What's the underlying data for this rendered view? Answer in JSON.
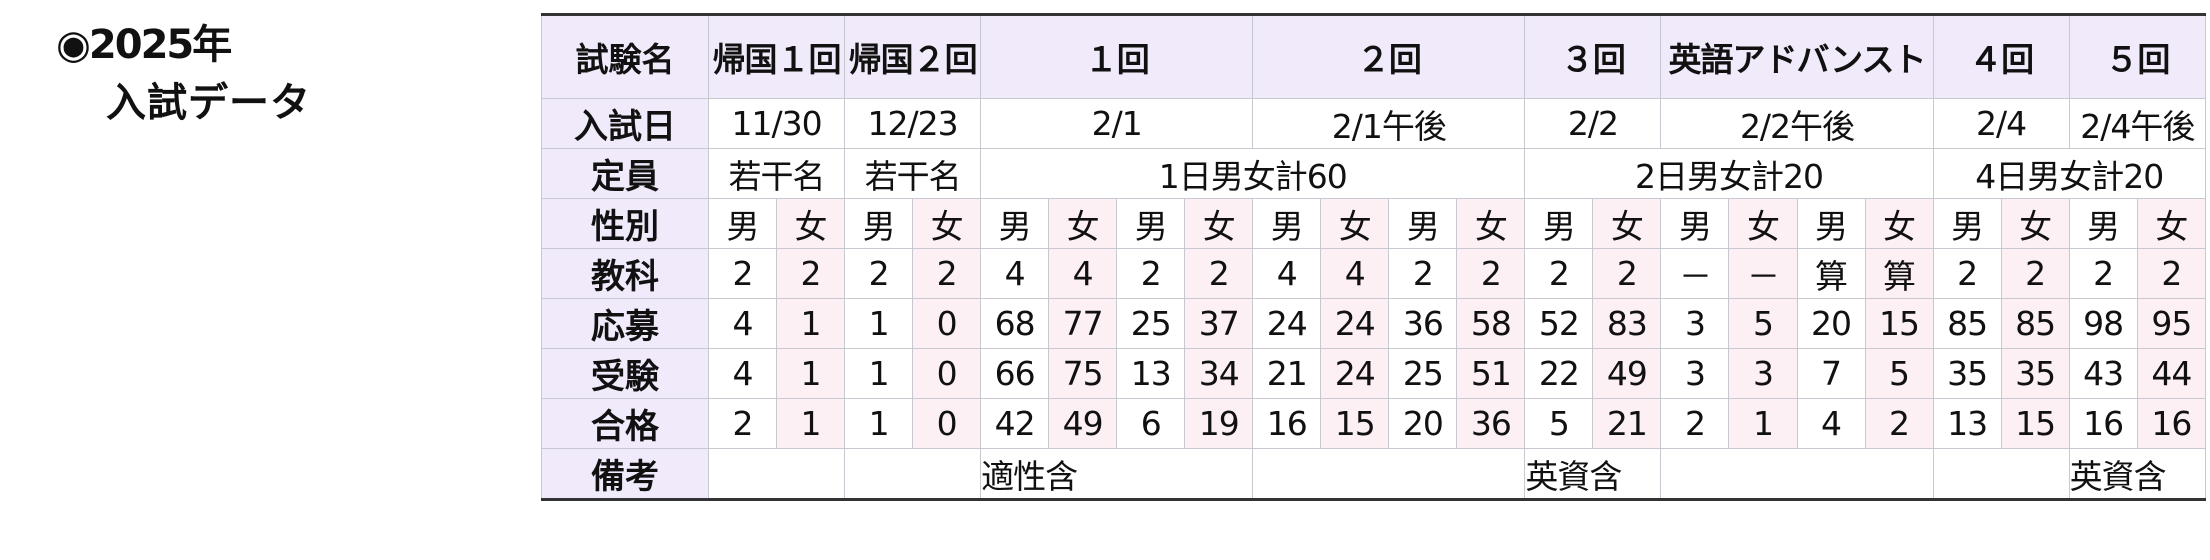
{
  "title": {
    "line1": "◉2025年",
    "line2": "入試データ"
  },
  "colors": {
    "label_bg": "#f1eafb",
    "female_bg": "#fdf0f5",
    "border": "#c8c8d0"
  },
  "table": {
    "exam_row": {
      "label": "試験名",
      "cells": [
        {
          "text": "帰国１回",
          "span": 2
        },
        {
          "text": "帰国２回",
          "span": 2
        },
        {
          "text": "１回",
          "span": 4
        },
        {
          "text": "２回",
          "span": 4
        },
        {
          "text": "３回",
          "span": 2
        },
        {
          "text": "英語アドバンスト",
          "span": 4
        },
        {
          "text": "４回",
          "span": 2
        },
        {
          "text": "５回",
          "span": 2
        }
      ]
    },
    "date_row": {
      "label": "入試日",
      "cells": [
        {
          "text": "11/30",
          "span": 2
        },
        {
          "text": "12/23",
          "span": 2
        },
        {
          "text": "2/1",
          "span": 4
        },
        {
          "text": "2/1午後",
          "span": 4
        },
        {
          "text": "2/2",
          "span": 2
        },
        {
          "text": "2/2午後",
          "span": 4
        },
        {
          "text": "2/4",
          "span": 2
        },
        {
          "text": "2/4午後",
          "span": 2
        }
      ]
    },
    "capacity_row": {
      "label": "定員",
      "cells": [
        {
          "text": "若干名",
          "span": 2
        },
        {
          "text": "若干名",
          "span": 2
        },
        {
          "text": "1日男女計60",
          "span": 8
        },
        {
          "text": "2日男女計20",
          "span": 6
        },
        {
          "text": "4日男女計20",
          "span": 4
        }
      ]
    },
    "gender_row": {
      "label": "性別",
      "male": "男",
      "female": "女"
    },
    "data_rows": [
      {
        "label": "教科",
        "values": [
          "2",
          "2",
          "2",
          "2",
          "4",
          "4",
          "2",
          "2",
          "4",
          "4",
          "2",
          "2",
          "2",
          "2",
          "－",
          "－",
          "算",
          "算",
          "2",
          "2",
          "2",
          "2"
        ]
      },
      {
        "label": "応募",
        "values": [
          "4",
          "1",
          "1",
          "0",
          "68",
          "77",
          "25",
          "37",
          "24",
          "24",
          "36",
          "58",
          "52",
          "83",
          "3",
          "5",
          "20",
          "15",
          "85",
          "85",
          "98",
          "95"
        ]
      },
      {
        "label": "受験",
        "values": [
          "4",
          "1",
          "1",
          "0",
          "66",
          "75",
          "13",
          "34",
          "21",
          "24",
          "25",
          "51",
          "22",
          "49",
          "3",
          "3",
          "7",
          "5",
          "35",
          "35",
          "43",
          "44"
        ]
      },
      {
        "label": "合格",
        "values": [
          "2",
          "1",
          "1",
          "0",
          "42",
          "49",
          "6",
          "19",
          "16",
          "15",
          "20",
          "36",
          "5",
          "21",
          "2",
          "1",
          "4",
          "2",
          "13",
          "15",
          "16",
          "16"
        ]
      }
    ],
    "notes_row": {
      "label": "備考",
      "cells": [
        {
          "text": "",
          "span": 2
        },
        {
          "text": "",
          "span": 2
        },
        {
          "text": "適性含",
          "span": 4
        },
        {
          "text": "",
          "span": 4
        },
        {
          "text": "英資含",
          "span": 2
        },
        {
          "text": "",
          "span": 4
        },
        {
          "text": "",
          "span": 2
        },
        {
          "text": "英資含",
          "span": 2
        }
      ]
    }
  }
}
